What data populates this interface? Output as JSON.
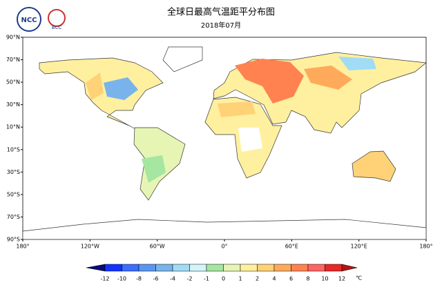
{
  "header": {
    "title": "全球日最高气温距平分布图",
    "subtitle": "2018年07月",
    "logos": [
      "NCC",
      "BCC"
    ]
  },
  "map": {
    "lat_labels": [
      "90°N",
      "70°N",
      "50°N",
      "30°N",
      "10°N",
      "10°S",
      "30°S",
      "50°S",
      "70°S",
      "90°S"
    ],
    "lon_labels": [
      "180°",
      "120°W",
      "60°W",
      "0°",
      "60°E",
      "120°E",
      "180°"
    ]
  },
  "colorbar": {
    "ticks": [
      -12,
      -10,
      -8,
      -6,
      -4,
      -2,
      -1,
      0,
      1,
      2,
      4,
      6,
      8,
      10,
      12
    ],
    "unit": "℃",
    "colors": [
      "#0a0a78",
      "#1432ff",
      "#3c6eff",
      "#5a96f0",
      "#78b4eb",
      "#a0dcf5",
      "#d2f5fa",
      "#a5e6a0",
      "#e6f5b4",
      "#fff0a0",
      "#ffd278",
      "#ffaa5a",
      "#ff8250",
      "#ff6464",
      "#e62828",
      "#b41414"
    ]
  }
}
